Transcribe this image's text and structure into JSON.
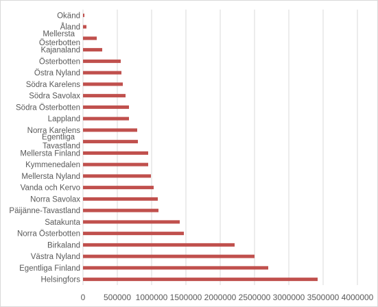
{
  "chart_data": {
    "type": "bar",
    "orientation": "horizontal",
    "categories": [
      "Helsingfors",
      "Egentliga Finland",
      "Västra Nyland",
      "Birkaland",
      "Norra Österbotten",
      "Satakunta",
      "Päijänne-Tavastland",
      "Norra Savolax",
      "Vanda och Kervo",
      "Mellersta Nyland",
      "Kymmenedalen",
      "Mellersta Finland",
      "Egentliga Tavastland",
      "Norra Karelens",
      "Lappland",
      "Södra Österbotten",
      "Södra Savolax",
      "Södra Karelens",
      "Östra Nyland",
      "Österbotten",
      "Kajanaland",
      "Mellersta Österbotten",
      "Åland",
      "Okänd"
    ],
    "values": [
      3420000,
      2700000,
      2500000,
      2210000,
      1470000,
      1410000,
      1100000,
      1090000,
      1030000,
      990000,
      950000,
      950000,
      800000,
      790000,
      670000,
      670000,
      620000,
      580000,
      560000,
      550000,
      280000,
      200000,
      50000,
      20000
    ],
    "xlim": [
      0,
      4000000
    ],
    "x_ticks": [
      "0",
      "500000",
      "1000000",
      "1500000",
      "2000000",
      "2500000",
      "3000000",
      "3500000",
      "4000000"
    ],
    "gridlines": true,
    "bar_color": "#c0504d",
    "grid_color": "#d9d9d9",
    "title": "",
    "xlabel": "",
    "ylabel": ""
  }
}
